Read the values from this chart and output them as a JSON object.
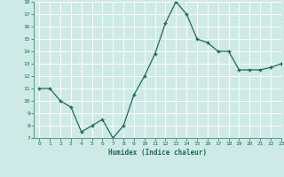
{
  "x": [
    0,
    1,
    2,
    3,
    4,
    5,
    6,
    7,
    8,
    9,
    10,
    11,
    12,
    13,
    14,
    15,
    16,
    17,
    18,
    19,
    20,
    21,
    22,
    23
  ],
  "y": [
    11,
    11,
    10,
    9.5,
    7.5,
    8,
    8.5,
    7,
    8,
    10.5,
    12,
    13.8,
    16.3,
    18,
    17,
    15,
    14.7,
    14,
    14,
    12.5,
    12.5,
    12.5,
    12.7,
    13
  ],
  "xlabel": "Humidex (Indice chaleur)",
  "ylim": [
    7,
    18
  ],
  "xlim": [
    -0.5,
    23
  ],
  "yticks": [
    7,
    8,
    9,
    10,
    11,
    12,
    13,
    14,
    15,
    16,
    17,
    18
  ],
  "xticks": [
    0,
    1,
    2,
    3,
    4,
    5,
    6,
    7,
    8,
    9,
    10,
    11,
    12,
    13,
    14,
    15,
    16,
    17,
    18,
    19,
    20,
    21,
    22,
    23
  ],
  "line_color": "#1a6b5a",
  "marker_color": "#1a6b5a",
  "bg_color": "#ceeae7",
  "grid_color": "#ffffff",
  "tick_color": "#1a6b5a",
  "label_color": "#1a6b5a",
  "spine_color": "#5a9a8a"
}
